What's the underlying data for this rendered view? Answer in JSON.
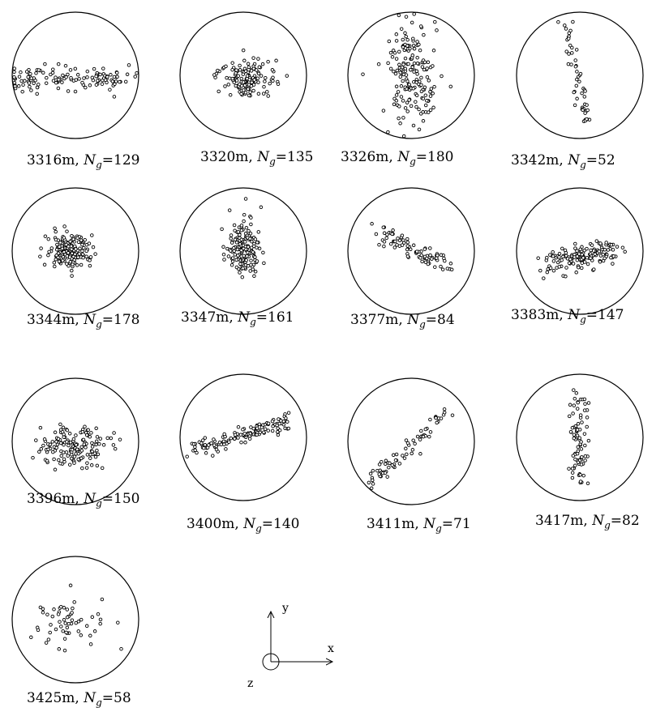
{
  "panels": [
    {
      "depth": "3316m",
      "ng_symbol": "N",
      "ng_sub": "g",
      "ng_value": "=129",
      "pattern": "band"
    },
    {
      "depth": "3320m",
      "ng_symbol": "N",
      "ng_sub": "g",
      "ng_value": "=135",
      "pattern": "cluster_small"
    },
    {
      "depth": "3326m",
      "ng_symbol": "N",
      "ng_sub": "g",
      "ng_value": "=180",
      "pattern": "vertical_blob"
    },
    {
      "depth": "3342m",
      "ng_symbol": "N",
      "ng_sub": "g",
      "ng_value": "=52",
      "pattern": "diagonal_sparse"
    },
    {
      "depth": "3344m",
      "ng_symbol": "N",
      "ng_sub": "g",
      "ng_value": "=178",
      "pattern": "cluster_dense"
    },
    {
      "depth": "3347m",
      "ng_symbol": "N",
      "ng_sub": "g",
      "ng_value": "=161",
      "pattern": "cluster_vertical"
    },
    {
      "depth": "3377m",
      "ng_symbol": "N",
      "ng_sub": "g",
      "ng_value": "=84",
      "pattern": "diagonal_down"
    },
    {
      "depth": "3383m",
      "ng_symbol": "N",
      "ng_sub": "g",
      "ng_value": "=147",
      "pattern": "spread_up"
    },
    {
      "depth": "3396m",
      "ng_symbol": "N",
      "ng_sub": "g",
      "ng_value": "=150",
      "pattern": "cluster_wide"
    },
    {
      "depth": "3400m",
      "ng_symbol": "N",
      "ng_sub": "g",
      "ng_value": "=140",
      "pattern": "diagonal_shallow"
    },
    {
      "depth": "3411m",
      "ng_symbol": "N",
      "ng_sub": "g",
      "ng_value": "=71",
      "pattern": "diagonal_up"
    },
    {
      "depth": "3417m",
      "ng_symbol": "N",
      "ng_sub": "g",
      "ng_value": "=82",
      "pattern": "vertical_line"
    },
    {
      "depth": "3425m",
      "ng_symbol": "N",
      "ng_sub": "g",
      "ng_value": "=58",
      "pattern": "sparse_center"
    }
  ],
  "axes": {
    "x_label": "x",
    "y_label": "y",
    "z_label": "z"
  }
}
